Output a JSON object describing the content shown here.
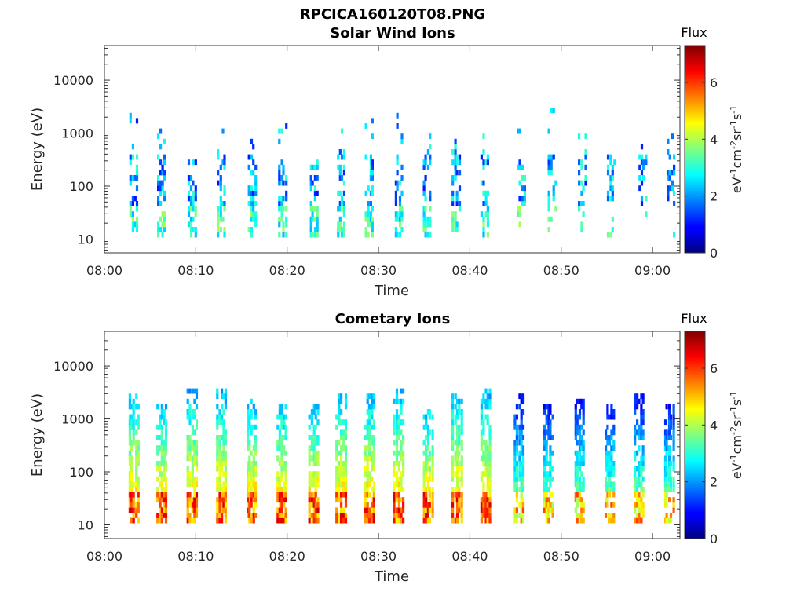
{
  "figure": {
    "title": "RPCICA160120T08.PNG"
  },
  "chart_data": [
    {
      "type": "heatmap",
      "title": "Solar Wind Ions",
      "xlabel": "Time",
      "ylabel": "Energy (eV)",
      "x_ticks": [
        "08:00",
        "08:10",
        "08:20",
        "08:30",
        "08:40",
        "08:50",
        "09:00"
      ],
      "y_ticks": [
        "10",
        "100",
        "1000",
        "10000"
      ],
      "y_scale": "log",
      "ylim": [
        5.5,
        45000
      ],
      "xlim_minutes": [
        0,
        63
      ],
      "colorbar": {
        "title": "Flux",
        "label": "eV-1cm-2sr-1s-1",
        "ticks": [
          "0",
          "2",
          "4",
          "6"
        ],
        "range": [
          0,
          7.3
        ],
        "colormap": "jet"
      },
      "burst_times_minutes": [
        3.2,
        6.2,
        9.6,
        12.8,
        16.2,
        19.5,
        22.9,
        25.9,
        29.0,
        32.2,
        35.3,
        38.5,
        41.6,
        45.6,
        49.0,
        52.3,
        55.5,
        58.9,
        62.0
      ],
      "bursts_description_values": {
        "low_band_energy_eV": [
          12,
          45
        ],
        "typical_flux": [
          2,
          4
        ],
        "upper_tail_max_energy_eV": [
          300,
          3500
        ]
      }
    },
    {
      "type": "heatmap",
      "title": "Cometary Ions",
      "xlabel": "Time",
      "ylabel": "Energy (eV)",
      "x_ticks": [
        "08:00",
        "08:10",
        "08:20",
        "08:30",
        "08:40",
        "08:50",
        "09:00"
      ],
      "y_ticks": [
        "10",
        "100",
        "1000",
        "10000"
      ],
      "y_scale": "log",
      "ylim": [
        5.5,
        45000
      ],
      "xlim_minutes": [
        0,
        63
      ],
      "colorbar": {
        "title": "Flux",
        "label": "eV-1cm-2sr-1s-1",
        "ticks": [
          "0",
          "2",
          "4",
          "6"
        ],
        "range": [
          0,
          7.3
        ],
        "colormap": "jet"
      },
      "burst_times_minutes": [
        3.2,
        6.3,
        9.6,
        12.8,
        16.1,
        19.4,
        22.9,
        25.9,
        29.0,
        32.2,
        35.4,
        38.6,
        41.7,
        45.4,
        48.6,
        52.0,
        55.3,
        58.5,
        61.8
      ],
      "bursts_description_values": {
        "low_band_energy_eV": [
          12,
          45
        ],
        "low_band_peak_flux": [
          5.5,
          6.8
        ],
        "upper_tail_max_energy_eV": [
          1500,
          3500
        ]
      }
    }
  ]
}
